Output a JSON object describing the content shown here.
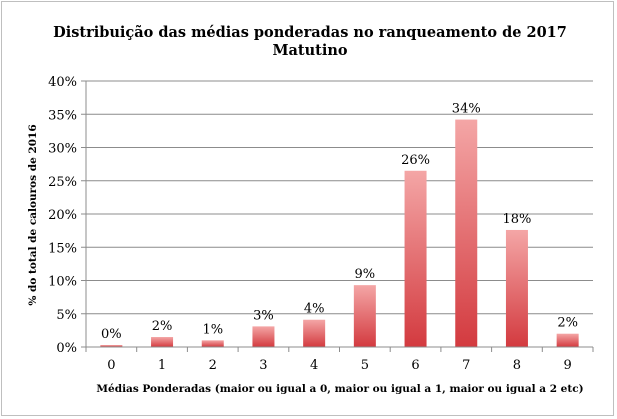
{
  "chart_data": {
    "type": "bar",
    "title": "Distribuição das médias ponderadas no ranqueamento de 2017",
    "subtitle": "Matutino",
    "xlabel": "Médias Ponderadas (maior ou igual a 0, maior ou igual a 1, maior ou igual a 2 etc)",
    "ylabel": "% do total de calouros de 2016",
    "categories": [
      "0",
      "1",
      "2",
      "3",
      "4",
      "5",
      "6",
      "7",
      "8",
      "9"
    ],
    "values": [
      0.3,
      1.5,
      1.0,
      3.1,
      4.1,
      9.3,
      26.5,
      34.2,
      17.6,
      2.0
    ],
    "data_labels": [
      "0%",
      "2%",
      "1%",
      "3%",
      "4%",
      "9%",
      "26%",
      "34%",
      "18%",
      "2%"
    ],
    "ylim": [
      0,
      40
    ],
    "yticks": [
      0,
      5,
      10,
      15,
      20,
      25,
      30,
      35,
      40
    ],
    "ytick_labels": [
      "0%",
      "5%",
      "10%",
      "15%",
      "20%",
      "25%",
      "30%",
      "35%",
      "40%"
    ],
    "grid": true,
    "legend": "none",
    "colors": {
      "bar_light": "#f4a6a6",
      "bar_dark": "#d33a3f",
      "grid": "#8c8c8c"
    }
  }
}
